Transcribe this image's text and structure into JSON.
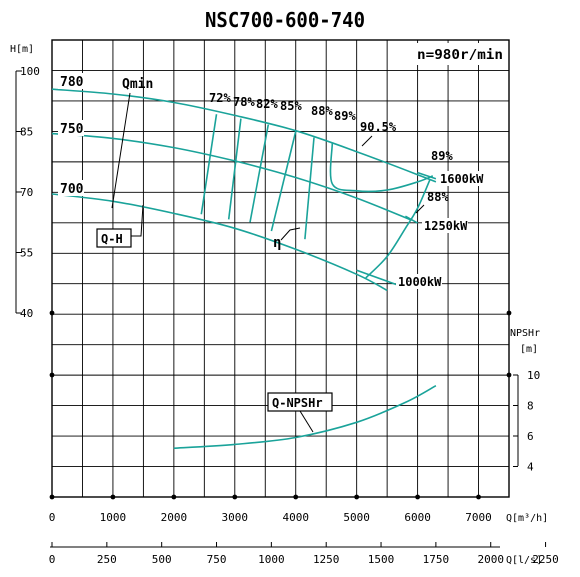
{
  "chart_data": {
    "type": "line",
    "title": "NSC700-600-740",
    "speed_label": "n=980r/min",
    "head_axis": {
      "label": "H[m]",
      "ticks": [
        "100",
        "85",
        "70",
        "55",
        "40"
      ]
    },
    "npshr_axis": {
      "label": "NPSHr",
      "unit": "[m]",
      "ticks": [
        "10",
        "8",
        "6",
        "4"
      ]
    },
    "x_axis_m3h": {
      "label": "Q[m³/h]",
      "ticks": [
        "0",
        "1000",
        "2000",
        "3000",
        "4000",
        "5000",
        "6000",
        "7000"
      ]
    },
    "x_axis_ls": {
      "label": "Q[l/s]",
      "ticks": [
        "0",
        "250",
        "500",
        "750",
        "1000",
        "1250",
        "1500",
        "1750",
        "2000",
        "2250"
      ]
    },
    "head_curves": [
      {
        "name": "780",
        "points": [
          [
            0,
            95.5
          ],
          [
            1000,
            94.3
          ],
          [
            2000,
            92.2
          ],
          [
            3000,
            89.0
          ],
          [
            4000,
            85.2
          ],
          [
            5000,
            80.0
          ],
          [
            6000,
            74.3
          ],
          [
            6300,
            72.5
          ]
        ]
      },
      {
        "name": "750",
        "points": [
          [
            0,
            84.5
          ],
          [
            1000,
            83.3
          ],
          [
            2000,
            81.0
          ],
          [
            3000,
            77.7
          ],
          [
            4000,
            73.6
          ],
          [
            5000,
            68.5
          ],
          [
            5900,
            63.0
          ]
        ]
      },
      {
        "name": "700",
        "points": [
          [
            0,
            69.5
          ],
          [
            1000,
            67.7
          ],
          [
            2000,
            64.7
          ],
          [
            3000,
            61.0
          ],
          [
            4000,
            55.8
          ],
          [
            5000,
            49.6
          ],
          [
            5500,
            45.6
          ]
        ]
      }
    ],
    "power_curves": [
      {
        "name": "1600kW",
        "points": [
          [
            6000,
            74.8
          ],
          [
            6300,
            73.3
          ]
        ]
      },
      {
        "name": "1250kW",
        "points": [
          [
            5800,
            64.0
          ],
          [
            6000,
            62.3
          ]
        ]
      },
      {
        "name": "1000kW",
        "points": [
          [
            5000,
            50.6
          ],
          [
            5700,
            46.8
          ]
        ]
      }
    ],
    "efficiency_lines": [
      {
        "name": "72%",
        "points": [
          [
            2700,
            89.3
          ],
          [
            2450,
            64.5
          ]
        ]
      },
      {
        "name": "78%",
        "points": [
          [
            3100,
            88.2
          ],
          [
            2900,
            63.2
          ]
        ]
      },
      {
        "name": "82%",
        "points": [
          [
            3550,
            86.7
          ],
          [
            3250,
            62.5
          ]
        ]
      },
      {
        "name": "85%",
        "points": [
          [
            4000,
            85.0
          ],
          [
            3600,
            60.3
          ]
        ]
      },
      {
        "name": "88%",
        "points": [
          [
            4300,
            83.5
          ],
          [
            4150,
            58.3
          ]
        ]
      },
      {
        "name": "89%",
        "points": [
          [
            4600,
            82.1
          ],
          [
            4600,
            72.0
          ],
          [
            5000,
            70.3
          ],
          [
            5500,
            70.5
          ],
          [
            6000,
            72.5
          ],
          [
            6250,
            74.0
          ]
        ]
      },
      {
        "name": "88%",
        "points": [
          [
            5150,
            48.7
          ],
          [
            5500,
            54.0
          ],
          [
            5800,
            61.0
          ],
          [
            6000,
            66.0
          ],
          [
            6200,
            73.0
          ]
        ]
      }
    ],
    "efficiency_outer_labels": [
      {
        "text": "90.5%"
      },
      {
        "text": "89%"
      },
      {
        "text": "88%"
      }
    ],
    "npshr_curve": {
      "name": "Q-NPSHr",
      "points": [
        [
          2000,
          5.2
        ],
        [
          3000,
          5.45
        ],
        [
          4000,
          5.9
        ],
        [
          5000,
          6.9
        ],
        [
          5800,
          8.2
        ],
        [
          6300,
          9.3
        ]
      ]
    },
    "annotations": {
      "qmin": "Qmin",
      "qh": "Q-H",
      "eta": "η"
    },
    "ranges": {
      "q_m3h": [
        0,
        7500
      ],
      "head": [
        35,
        108
      ],
      "npshr": [
        3,
        12
      ]
    }
  }
}
